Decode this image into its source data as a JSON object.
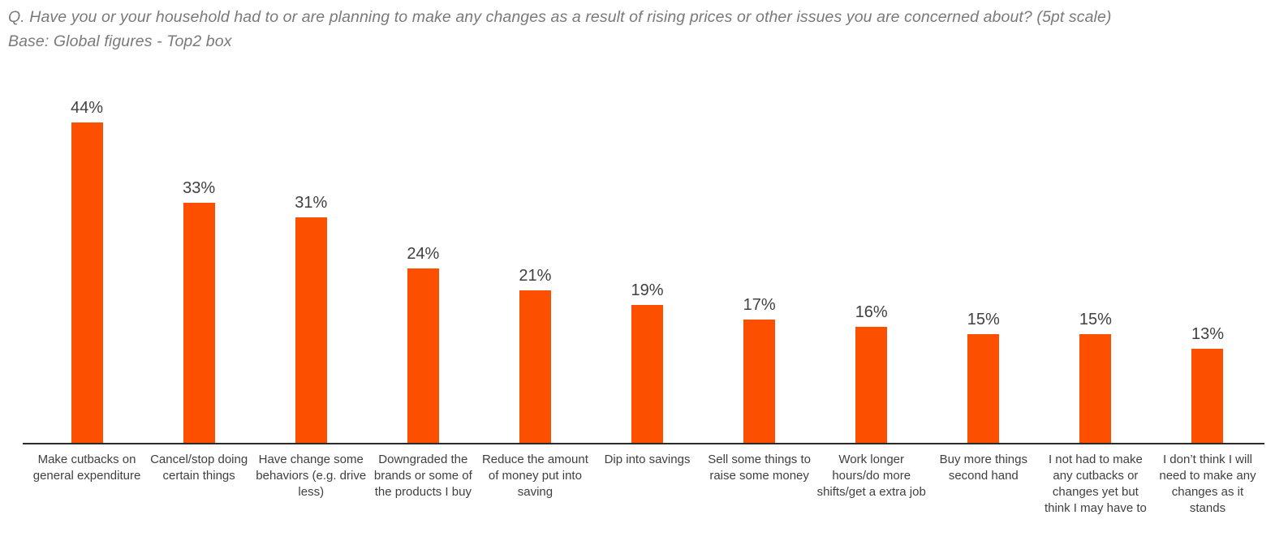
{
  "header": {
    "title": "Q. Have you or your household had to or are planning to make any changes as a result of rising prices or other issues you are concerned about? (5pt scale)",
    "subtitle": "Base: Global figures - Top2 box"
  },
  "chart_data": {
    "type": "bar",
    "title": "Q. Have you or your household had to or are planning to make any changes as a result of rising prices or other issues you are concerned about? (5pt scale)",
    "subtitle": "Base: Global figures - Top2 box",
    "categories": [
      "Make cutbacks on general expenditure",
      "Cancel/stop doing certain things",
      "Have change some behaviors (e.g. drive less)",
      "Downgraded the brands or some of the products I buy",
      "Reduce the amount of money put into saving",
      "Dip into savings",
      "Sell some things to raise some money",
      "Work longer hours/do more shifts/get a extra job",
      "Buy more things second hand",
      "I not had to make any cutbacks or changes yet but think I may have to",
      "I don’t think I will need to make any changes as it stands"
    ],
    "values": [
      44,
      33,
      31,
      24,
      21,
      19,
      17,
      16,
      15,
      15,
      13
    ],
    "value_labels": [
      "44%",
      "33%",
      "31%",
      "24%",
      "21%",
      "19%",
      "17%",
      "16%",
      "15%",
      "15%",
      "13%"
    ],
    "xlabel": "",
    "ylabel": "",
    "ylim": [
      0,
      49
    ],
    "grid": false,
    "legend": false,
    "bar_color": "#FC5000",
    "axis_color": "#2B2B2B",
    "value_label_color": "#404040",
    "category_label_color": "#3F3F3F",
    "title_color": "#7A7A7A"
  }
}
